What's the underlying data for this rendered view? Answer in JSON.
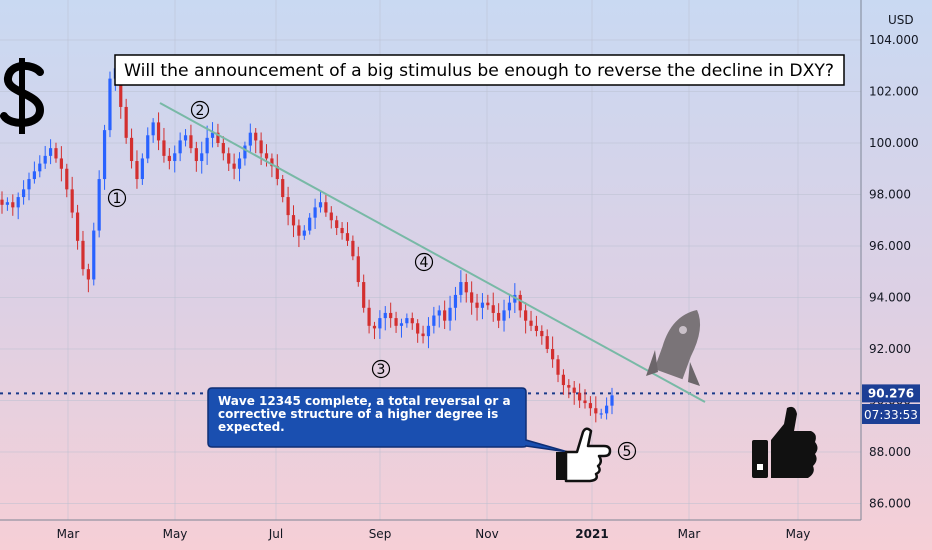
{
  "chart_data": {
    "type": "candlestick",
    "title": "Will the announcement of a big stimulus be enough to reverse the decline in DXY?",
    "currency": "USD",
    "ylim": [
      85.0,
      106.0
    ],
    "y_ticks": [
      "104.000",
      "102.000",
      "100.000",
      "98.000",
      "96.000",
      "94.000",
      "92.000",
      "90.000",
      "88.000",
      "86.000"
    ],
    "x_ticks": [
      "Mar",
      "May",
      "Jul",
      "Sep",
      "Nov",
      "2021",
      "Mar",
      "May"
    ],
    "last_price": "90.276",
    "countdown": "07:33:53",
    "colors": {
      "up": "#2962ff",
      "down": "#d32f2f",
      "trendline": "#78b9a6",
      "price_line": "#1a3a8a",
      "label_bg": "#1c3f95",
      "note_bg": "#1a4fb0"
    },
    "series": [
      {
        "values": [
          97.6,
          97.7,
          97.5,
          97.9,
          98.2,
          98.6,
          98.9,
          99.2,
          99.5,
          99.8,
          99.4,
          99.0,
          98.2,
          97.3,
          96.2,
          95.1,
          94.7,
          96.6,
          98.6,
          100.5,
          102.5,
          102.9,
          101.4,
          100.2,
          99.3,
          98.6,
          99.4,
          100.3,
          100.8,
          100.1,
          99.5,
          99.3,
          99.6,
          100.1,
          100.3,
          99.8,
          99.3,
          99.6,
          100.2,
          100.4,
          100.0,
          99.6,
          99.2,
          99.0,
          99.4,
          99.9,
          100.4,
          100.1,
          99.6,
          99.4,
          99.1,
          98.6,
          97.9,
          97.2,
          96.8,
          96.4,
          96.6,
          97.1,
          97.5,
          97.7,
          97.3,
          97.0,
          96.7,
          96.5,
          96.2,
          95.6,
          94.6,
          93.6,
          92.9,
          92.8,
          93.2,
          93.4,
          93.2,
          92.9,
          93.0,
          93.2,
          93.0,
          92.6,
          92.5,
          92.9,
          93.3,
          93.5,
          93.1,
          93.6,
          94.1,
          94.6,
          94.2,
          93.8,
          93.6,
          93.8,
          93.7,
          93.4,
          93.1,
          93.5,
          93.8,
          94.1,
          93.5,
          93.1,
          92.9,
          92.7,
          92.5,
          92.0,
          91.6,
          91.0,
          90.6,
          90.5,
          90.3,
          90.0,
          89.9,
          89.7,
          89.5,
          89.5,
          89.8,
          90.2
        ]
      }
    ],
    "waves": [
      "1",
      "2",
      "3",
      "4",
      "5"
    ],
    "note": "Wave 12345 complete, a total reversal or a corrective structure of a higher degree is expected."
  }
}
